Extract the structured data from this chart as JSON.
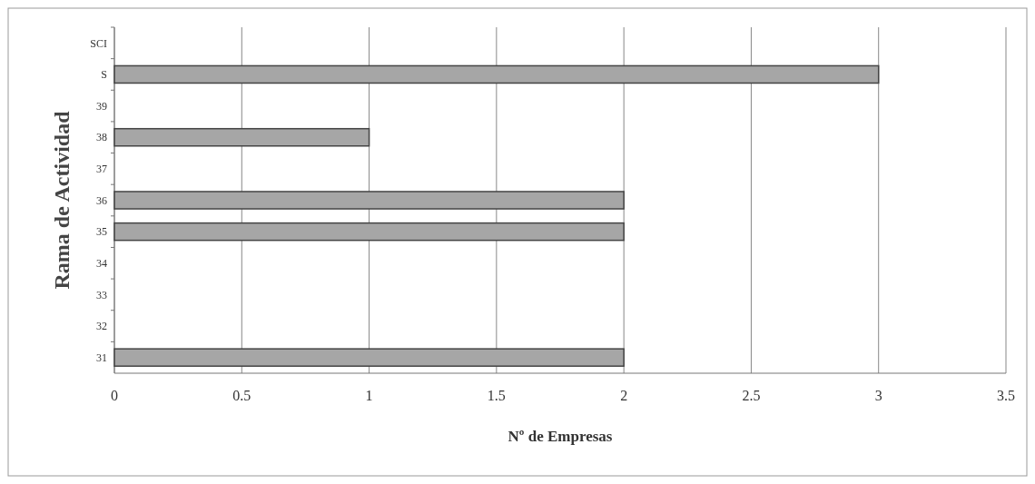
{
  "chart_data": {
    "type": "bar",
    "orientation": "horizontal",
    "xlabel": "Nº de Empresas",
    "ylabel": "Rama de Actividad",
    "categories": [
      "SCI",
      "S",
      "39",
      "38",
      "37",
      "36",
      "35",
      "34",
      "33",
      "32",
      "31"
    ],
    "values": [
      0,
      3,
      0,
      1,
      0,
      2,
      2,
      0,
      0,
      0,
      2
    ],
    "color": "#a6a6a6",
    "xlim": [
      0,
      3.5
    ],
    "xticks": [
      0,
      0.5,
      1,
      1.5,
      2,
      2.5,
      3,
      3.5
    ],
    "grid": "x"
  }
}
